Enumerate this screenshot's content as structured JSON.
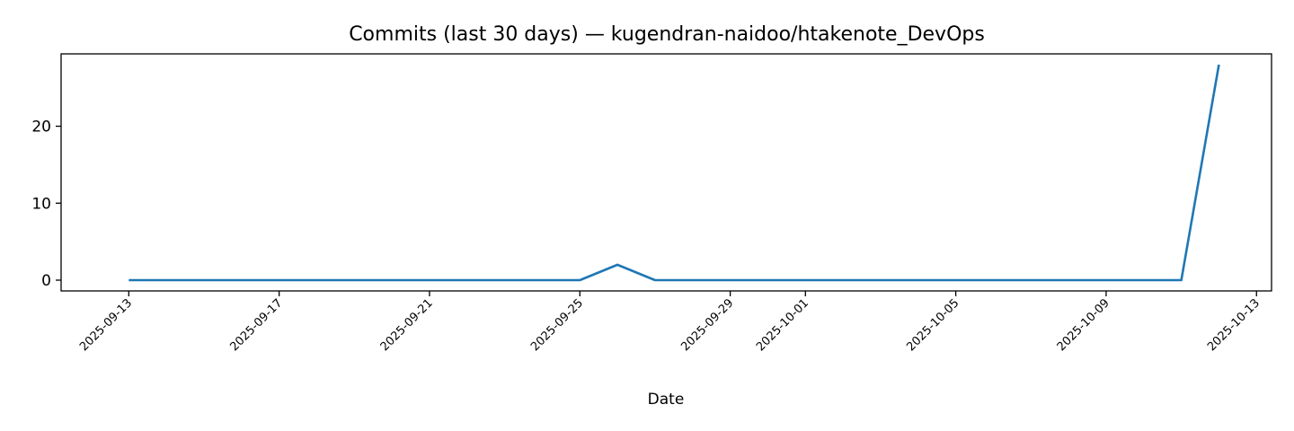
{
  "chart_data": {
    "type": "line",
    "title": "Commits (last 30 days) — kugendran-naidoo/htakenote_DevOps",
    "xlabel": "Date",
    "ylabel": "",
    "x_range": [
      "2025-09-11",
      "2025-10-13"
    ],
    "xlim": [
      -1.8,
      30.4
    ],
    "ylim": [
      -1.4,
      29.4
    ],
    "yticks": [
      0,
      10,
      20
    ],
    "xticks": [
      "2025-09-13",
      "2025-09-17",
      "2025-09-21",
      "2025-09-25",
      "2025-09-29",
      "2025-10-01",
      "2025-10-05",
      "2025-10-09",
      "2025-10-13"
    ],
    "grid": false,
    "series": [
      {
        "color": "#1f77b4",
        "points": [
          {
            "x": "2025-09-13",
            "y": 0
          },
          {
            "x": "2025-09-14",
            "y": 0
          },
          {
            "x": "2025-09-15",
            "y": 0
          },
          {
            "x": "2025-09-16",
            "y": 0
          },
          {
            "x": "2025-09-17",
            "y": 0
          },
          {
            "x": "2025-09-18",
            "y": 0
          },
          {
            "x": "2025-09-19",
            "y": 0
          },
          {
            "x": "2025-09-20",
            "y": 0
          },
          {
            "x": "2025-09-21",
            "y": 0
          },
          {
            "x": "2025-09-22",
            "y": 0
          },
          {
            "x": "2025-09-23",
            "y": 0
          },
          {
            "x": "2025-09-24",
            "y": 0
          },
          {
            "x": "2025-09-25",
            "y": 0
          },
          {
            "x": "2025-09-26",
            "y": 2
          },
          {
            "x": "2025-09-27",
            "y": 0
          },
          {
            "x": "2025-09-28",
            "y": 0
          },
          {
            "x": "2025-09-29",
            "y": 0
          },
          {
            "x": "2025-09-30",
            "y": 0
          },
          {
            "x": "2025-10-01",
            "y": 0
          },
          {
            "x": "2025-10-02",
            "y": 0
          },
          {
            "x": "2025-10-03",
            "y": 0
          },
          {
            "x": "2025-10-04",
            "y": 0
          },
          {
            "x": "2025-10-05",
            "y": 0
          },
          {
            "x": "2025-10-06",
            "y": 0
          },
          {
            "x": "2025-10-07",
            "y": 0
          },
          {
            "x": "2025-10-08",
            "y": 0
          },
          {
            "x": "2025-10-09",
            "y": 0
          },
          {
            "x": "2025-10-10",
            "y": 0
          },
          {
            "x": "2025-10-11",
            "y": 0
          },
          {
            "x": "2025-10-12",
            "y": 28
          }
        ]
      }
    ]
  }
}
